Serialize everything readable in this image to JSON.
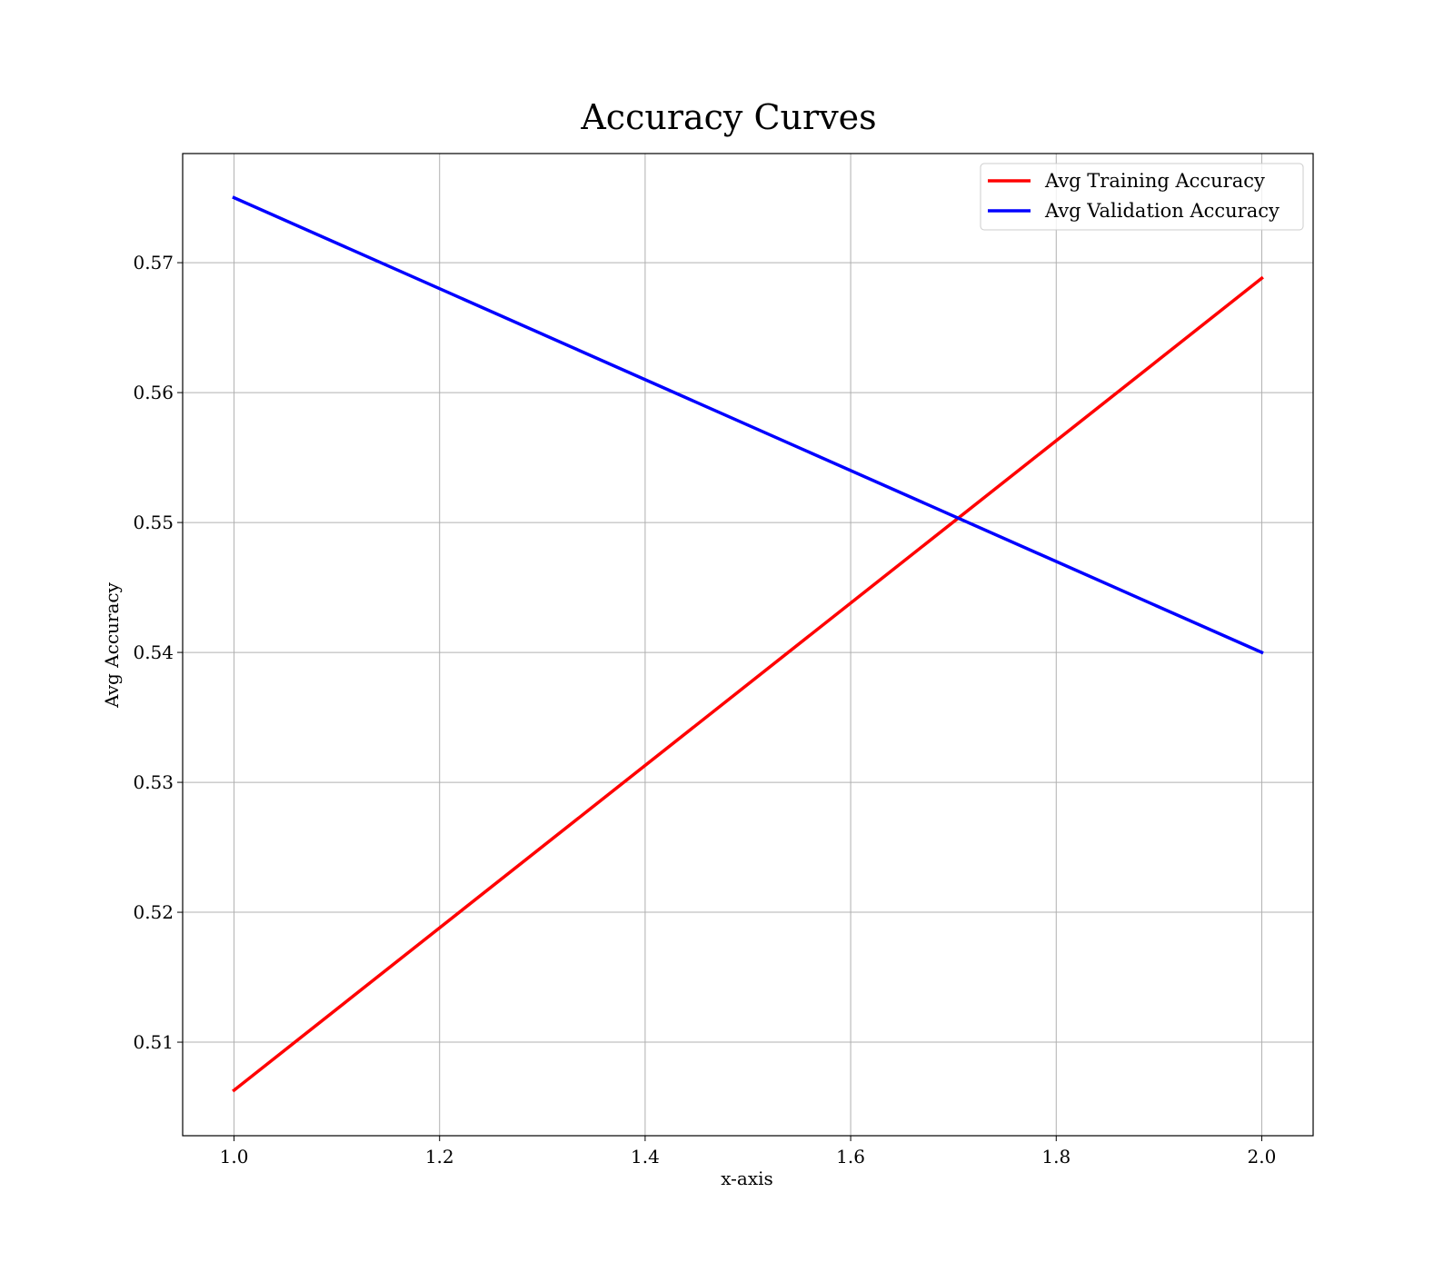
{
  "chart_data": {
    "type": "line",
    "title": "Accuracy Curves",
    "xlabel": "x-axis",
    "ylabel": "Avg Accuracy",
    "xlim": [
      0.95,
      2.05
    ],
    "ylim": [
      0.5028,
      0.5784
    ],
    "xticks": [
      1.0,
      1.2,
      1.4,
      1.6,
      1.8,
      2.0
    ],
    "xtick_labels": [
      "1.0",
      "1.2",
      "1.4",
      "1.6",
      "1.8",
      "2.0"
    ],
    "yticks": [
      0.51,
      0.52,
      0.53,
      0.54,
      0.55,
      0.56,
      0.57
    ],
    "ytick_labels": [
      "0.51",
      "0.52",
      "0.53",
      "0.54",
      "0.55",
      "0.56",
      "0.57"
    ],
    "grid": true,
    "legend_position": "top-right",
    "x": [
      1.0,
      2.0
    ],
    "series": [
      {
        "name": "Avg Training Accuracy",
        "color": "#ff0000",
        "values": [
          0.5063,
          0.5688
        ]
      },
      {
        "name": "Avg Validation Accuracy",
        "color": "#0000ff",
        "values": [
          0.575,
          0.54
        ]
      }
    ]
  }
}
